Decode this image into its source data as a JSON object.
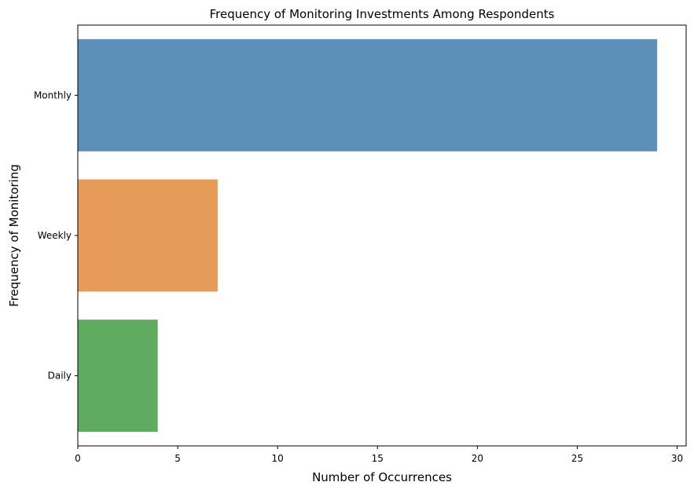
{
  "chart_data": {
    "type": "bar",
    "orientation": "horizontal",
    "title": "Frequency of Monitoring Investments Among Respondents",
    "xlabel": "Number of Occurrences",
    "ylabel": "Frequency of Monitoring",
    "categories": [
      "Monthly",
      "Weekly",
      "Daily"
    ],
    "values": [
      29,
      7,
      4
    ],
    "colors": [
      "#5b91b8",
      "#e69c58",
      "#5fab5f"
    ],
    "xlim": [
      0,
      30.45
    ],
    "xticks": [
      0,
      5,
      10,
      15,
      20,
      25,
      30
    ],
    "grid": false,
    "legend": "none"
  }
}
